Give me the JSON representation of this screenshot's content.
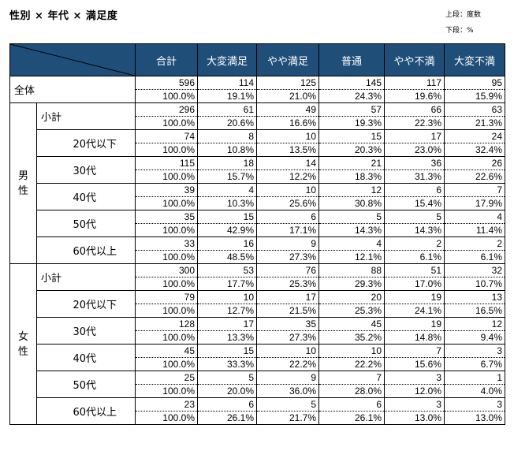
{
  "title": "性別 × 年代 × 満足度",
  "notes": {
    "line1": "上段：度数",
    "line2": "下段：%"
  },
  "columns": [
    "合計",
    "大変満足",
    "やや満足",
    "普通",
    "やや不満",
    "大変不満"
  ],
  "overall": {
    "label": "全体",
    "counts": [
      "596",
      "114",
      "125",
      "145",
      "117",
      "95"
    ],
    "pcts": [
      "100.0%",
      "19.1%",
      "21.0%",
      "24.3%",
      "19.6%",
      "15.9%"
    ]
  },
  "groups": [
    {
      "label": "男性",
      "rows": [
        {
          "label": "小計",
          "counts": [
            "296",
            "61",
            "49",
            "57",
            "66",
            "63"
          ],
          "pcts": [
            "100.0%",
            "20.6%",
            "16.6%",
            "19.3%",
            "22.3%",
            "21.3%"
          ]
        },
        {
          "label": "20代以下",
          "counts": [
            "74",
            "8",
            "10",
            "15",
            "17",
            "24"
          ],
          "pcts": [
            "100.0%",
            "10.8%",
            "13.5%",
            "20.3%",
            "23.0%",
            "32.4%"
          ]
        },
        {
          "label": "30代",
          "counts": [
            "115",
            "18",
            "14",
            "21",
            "36",
            "26"
          ],
          "pcts": [
            "100.0%",
            "15.7%",
            "12.2%",
            "18.3%",
            "31.3%",
            "22.6%"
          ]
        },
        {
          "label": "40代",
          "counts": [
            "39",
            "4",
            "10",
            "12",
            "6",
            "7"
          ],
          "pcts": [
            "100.0%",
            "10.3%",
            "25.6%",
            "30.8%",
            "15.4%",
            "17.9%"
          ]
        },
        {
          "label": "50代",
          "counts": [
            "35",
            "15",
            "6",
            "5",
            "5",
            "4"
          ],
          "pcts": [
            "100.0%",
            "42.9%",
            "17.1%",
            "14.3%",
            "14.3%",
            "11.4%"
          ]
        },
        {
          "label": "60代以上",
          "counts": [
            "33",
            "16",
            "9",
            "4",
            "2",
            "2"
          ],
          "pcts": [
            "100.0%",
            "48.5%",
            "27.3%",
            "12.1%",
            "6.1%",
            "6.1%"
          ]
        }
      ]
    },
    {
      "label": "女性",
      "rows": [
        {
          "label": "小計",
          "counts": [
            "300",
            "53",
            "76",
            "88",
            "51",
            "32"
          ],
          "pcts": [
            "100.0%",
            "17.7%",
            "25.3%",
            "29.3%",
            "17.0%",
            "10.7%"
          ]
        },
        {
          "label": "20代以下",
          "counts": [
            "79",
            "10",
            "17",
            "20",
            "19",
            "13"
          ],
          "pcts": [
            "100.0%",
            "12.7%",
            "21.5%",
            "25.3%",
            "24.1%",
            "16.5%"
          ]
        },
        {
          "label": "30代",
          "counts": [
            "128",
            "17",
            "35",
            "45",
            "19",
            "12"
          ],
          "pcts": [
            "100.0%",
            "13.3%",
            "27.3%",
            "35.2%",
            "14.8%",
            "9.4%"
          ]
        },
        {
          "label": "40代",
          "counts": [
            "45",
            "15",
            "10",
            "10",
            "7",
            "3"
          ],
          "pcts": [
            "100.0%",
            "33.3%",
            "22.2%",
            "22.2%",
            "15.6%",
            "6.7%"
          ]
        },
        {
          "label": "50代",
          "counts": [
            "25",
            "5",
            "9",
            "7",
            "3",
            "1"
          ],
          "pcts": [
            "100.0%",
            "20.0%",
            "36.0%",
            "28.0%",
            "12.0%",
            "4.0%"
          ]
        },
        {
          "label": "60代以上",
          "counts": [
            "23",
            "6",
            "5",
            "6",
            "3",
            "3"
          ],
          "pcts": [
            "100.0%",
            "26.1%",
            "21.7%",
            "26.1%",
            "13.0%",
            "13.0%"
          ]
        }
      ]
    }
  ]
}
